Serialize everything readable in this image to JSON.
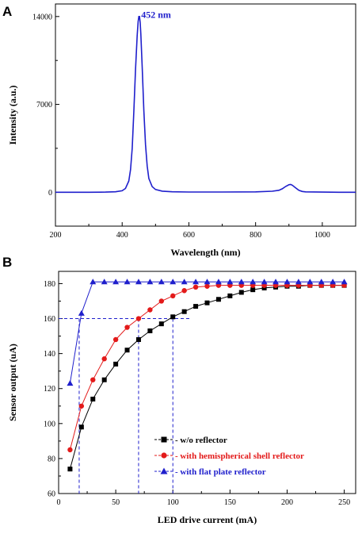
{
  "chart_data": [
    {
      "panel": "A",
      "type": "line",
      "xlabel": "Wavelength (nm)",
      "ylabel": "Intensity (a.u.)",
      "xlim": [
        200,
        1100
      ],
      "ylim": [
        -2700,
        15000
      ],
      "xticks": [
        200,
        400,
        600,
        800,
        1000
      ],
      "yticks": [
        0,
        7000,
        14000
      ],
      "annotation": "452 nm",
      "annotation_color": "#1f1fcc",
      "line_color": "#1f1fcc",
      "series": [
        {
          "x": [
            200,
            250,
            300,
            350,
            380,
            400,
            410,
            420,
            425,
            430,
            435,
            440,
            445,
            448,
            450,
            452,
            454,
            456,
            460,
            465,
            470,
            475,
            480,
            490,
            500,
            520,
            550,
            600,
            700,
            800,
            850,
            870,
            880,
            890,
            900,
            905,
            910,
            920,
            930,
            940,
            950,
            1000,
            1050,
            1100
          ],
          "y": [
            0,
            0,
            0,
            10,
            40,
            120,
            300,
            900,
            1800,
            3500,
            6500,
            9800,
            12500,
            13600,
            14000,
            14000,
            13500,
            12600,
            10000,
            6500,
            3800,
            2100,
            1100,
            450,
            220,
            90,
            40,
            20,
            20,
            30,
            80,
            160,
            280,
            460,
            600,
            620,
            560,
            350,
            150,
            60,
            30,
            10,
            0,
            0
          ]
        }
      ]
    },
    {
      "panel": "B",
      "type": "line",
      "xlabel": "LED drive current (mA)",
      "ylabel": "Sensor output (uA)",
      "xlim": [
        0,
        260
      ],
      "ylim": [
        60,
        187
      ],
      "xticks": [
        0,
        50,
        100,
        150,
        200,
        250
      ],
      "yticks": [
        60,
        80,
        100,
        120,
        140,
        160,
        180
      ],
      "x": [
        10,
        20,
        30,
        40,
        50,
        60,
        70,
        80,
        90,
        100,
        110,
        120,
        130,
        140,
        150,
        160,
        170,
        180,
        190,
        200,
        210,
        220,
        230,
        240,
        250
      ],
      "series": [
        {
          "name": "- w/o reflector",
          "color": "#000000",
          "marker": "square",
          "values": [
            74,
            98,
            114,
            125,
            134,
            142,
            148,
            153,
            157,
            161,
            164,
            167,
            169,
            171,
            173,
            175,
            176.5,
            177.5,
            178,
            178.5,
            178.5,
            179,
            179,
            179,
            179
          ]
        },
        {
          "name": "- with  hemispherical  shell reflector",
          "color": "#e31a1a",
          "marker": "circle",
          "values": [
            85,
            110,
            125,
            137,
            148,
            155,
            160,
            165,
            170,
            173,
            176,
            178,
            178.5,
            179,
            179,
            179,
            179,
            179,
            179,
            179,
            179,
            179,
            179,
            179,
            179
          ]
        },
        {
          "name": "- with  flat plate reflector",
          "color": "#1f1fcc",
          "marker": "triangle",
          "values": [
            123,
            163,
            181,
            181,
            181,
            181,
            181,
            181,
            181,
            181,
            181,
            181,
            181,
            181,
            181,
            181,
            181,
            181,
            181,
            181,
            181,
            181,
            181,
            181,
            181
          ]
        }
      ],
      "reference_lines": {
        "y": 160,
        "x_drops": [
          18,
          70,
          100
        ],
        "color": "#1f1fcc",
        "style": "dashed"
      },
      "legend_position": "bottom-right"
    }
  ]
}
